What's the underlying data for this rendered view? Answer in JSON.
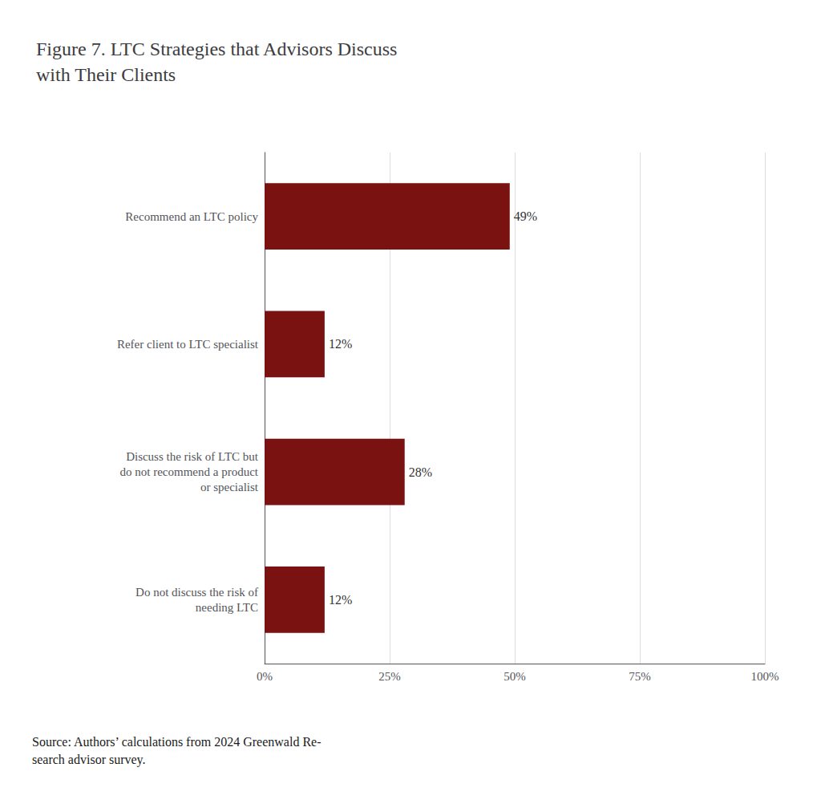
{
  "chart_data": {
    "type": "bar",
    "orientation": "horizontal",
    "title": "Figure 7. LTC Strategies that Advisors Discuss\nwith Their Clients",
    "categories": [
      "Do not discuss the risk of\nneeding LTC",
      "Discuss the risk of LTC but\ndo not recommend a product\nor specialist",
      "Refer client to LTC specialist",
      "Recommend an LTC policy"
    ],
    "values": [
      12,
      28,
      12,
      49
    ],
    "value_labels": [
      "12%",
      "28%",
      "12%",
      "49%"
    ],
    "data_labels": true,
    "color": "#7B1212",
    "xlim": [
      0,
      100
    ],
    "xticks": [
      {
        "value": 0,
        "label": "0%"
      },
      {
        "value": 25,
        "label": "25%"
      },
      {
        "value": 50,
        "label": "50%"
      },
      {
        "value": 75,
        "label": "75%"
      },
      {
        "value": 100,
        "label": "100%"
      }
    ],
    "grid": true,
    "annotations": [
      "Source: Authors’ calculations from 2024 Greenwald Re-\nsearch advisor survey."
    ]
  }
}
